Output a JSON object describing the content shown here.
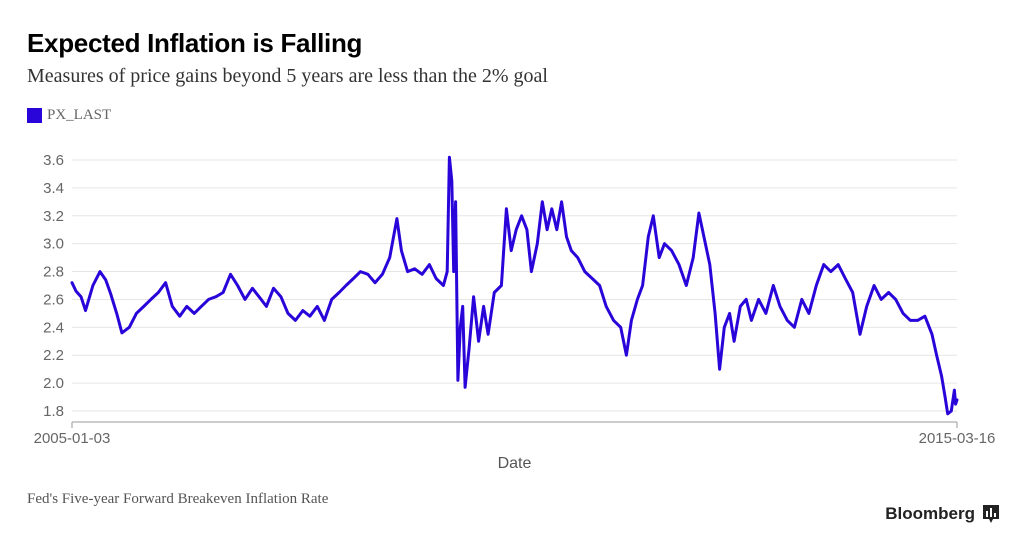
{
  "title": "Expected Inflation is Falling",
  "subtitle": "Measures of price gains beyond 5 years are less than the 2% goal",
  "legend": {
    "label": "PX_LAST",
    "color": "#2a05d9"
  },
  "source": "Fed's Five-year Forward Breakeven Inflation Rate",
  "brand": {
    "name": "Bloomberg",
    "logo_icon": "bloomberg-terminal-icon"
  },
  "chart_data": {
    "type": "line",
    "xlabel": "Date",
    "ylabel": "",
    "x_tick_labels": [
      "2005-01-03",
      "2015-03-16"
    ],
    "x_range": [
      "2005-01-03",
      "2015-03-16"
    ],
    "ylim": [
      1.75,
      3.65
    ],
    "y_ticks": [
      1.8,
      2.0,
      2.2,
      2.4,
      2.6,
      2.8,
      3.0,
      3.2,
      3.4,
      3.6
    ],
    "y_tick_labels": [
      "1.8",
      "2.0",
      "2.2",
      "2.4",
      "2.6",
      "2.8",
      "3.0",
      "3.2",
      "3.4",
      "3.6"
    ],
    "grid": "horizontal",
    "legend_position": "top-left",
    "series": [
      {
        "name": "PX_LAST",
        "color": "#2a05d9",
        "points": [
          [
            "2005-01-03",
            2.72
          ],
          [
            "2005-01-20",
            2.66
          ],
          [
            "2005-02-10",
            2.62
          ],
          [
            "2005-03-01",
            2.52
          ],
          [
            "2005-04-01",
            2.7
          ],
          [
            "2005-05-01",
            2.8
          ],
          [
            "2005-05-25",
            2.74
          ],
          [
            "2005-06-15",
            2.64
          ],
          [
            "2005-07-10",
            2.5
          ],
          [
            "2005-08-01",
            2.36
          ],
          [
            "2005-09-01",
            2.4
          ],
          [
            "2005-10-01",
            2.5
          ],
          [
            "2005-11-01",
            2.55
          ],
          [
            "2005-12-01",
            2.6
          ],
          [
            "2006-01-01",
            2.65
          ],
          [
            "2006-02-01",
            2.72
          ],
          [
            "2006-03-01",
            2.55
          ],
          [
            "2006-04-01",
            2.48
          ],
          [
            "2006-05-01",
            2.55
          ],
          [
            "2006-06-01",
            2.5
          ],
          [
            "2006-07-01",
            2.55
          ],
          [
            "2006-08-01",
            2.6
          ],
          [
            "2006-09-01",
            2.62
          ],
          [
            "2006-10-01",
            2.65
          ],
          [
            "2006-11-01",
            2.78
          ],
          [
            "2006-12-01",
            2.7
          ],
          [
            "2007-01-01",
            2.6
          ],
          [
            "2007-02-01",
            2.68
          ],
          [
            "2007-03-01",
            2.62
          ],
          [
            "2007-04-01",
            2.55
          ],
          [
            "2007-05-01",
            2.68
          ],
          [
            "2007-06-01",
            2.62
          ],
          [
            "2007-07-01",
            2.5
          ],
          [
            "2007-08-01",
            2.45
          ],
          [
            "2007-09-01",
            2.52
          ],
          [
            "2007-10-01",
            2.48
          ],
          [
            "2007-11-01",
            2.55
          ],
          [
            "2007-12-01",
            2.45
          ],
          [
            "2008-01-01",
            2.6
          ],
          [
            "2008-02-01",
            2.65
          ],
          [
            "2008-03-01",
            2.7
          ],
          [
            "2008-04-01",
            2.75
          ],
          [
            "2008-05-01",
            2.8
          ],
          [
            "2008-06-01",
            2.78
          ],
          [
            "2008-07-01",
            2.72
          ],
          [
            "2008-08-01",
            2.78
          ],
          [
            "2008-09-01",
            2.9
          ],
          [
            "2008-10-01",
            3.18
          ],
          [
            "2008-10-20",
            2.95
          ],
          [
            "2008-11-15",
            2.8
          ],
          [
            "2008-12-15",
            2.82
          ],
          [
            "2009-01-15",
            2.78
          ],
          [
            "2009-02-15",
            2.85
          ],
          [
            "2009-03-15",
            2.75
          ],
          [
            "2009-04-15",
            2.7
          ],
          [
            "2009-05-01",
            2.8
          ],
          [
            "2009-05-10",
            3.62
          ],
          [
            "2009-05-20",
            3.45
          ],
          [
            "2009-05-28",
            2.8
          ],
          [
            "2009-06-05",
            3.3
          ],
          [
            "2009-06-15",
            2.02
          ],
          [
            "2009-06-25",
            2.4
          ],
          [
            "2009-07-05",
            2.55
          ],
          [
            "2009-07-15",
            1.97
          ],
          [
            "2009-08-01",
            2.25
          ],
          [
            "2009-08-20",
            2.62
          ],
          [
            "2009-09-10",
            2.3
          ],
          [
            "2009-10-01",
            2.55
          ],
          [
            "2009-10-20",
            2.35
          ],
          [
            "2009-11-15",
            2.65
          ],
          [
            "2009-12-15",
            2.7
          ],
          [
            "2010-01-05",
            3.25
          ],
          [
            "2010-01-25",
            2.95
          ],
          [
            "2010-02-15",
            3.1
          ],
          [
            "2010-03-10",
            3.2
          ],
          [
            "2010-04-01",
            3.1
          ],
          [
            "2010-04-20",
            2.8
          ],
          [
            "2010-05-15",
            3.0
          ],
          [
            "2010-06-05",
            3.3
          ],
          [
            "2010-06-25",
            3.1
          ],
          [
            "2010-07-15",
            3.25
          ],
          [
            "2010-08-05",
            3.1
          ],
          [
            "2010-08-25",
            3.3
          ],
          [
            "2010-09-15",
            3.05
          ],
          [
            "2010-10-05",
            2.95
          ],
          [
            "2010-11-01",
            2.9
          ],
          [
            "2010-12-01",
            2.8
          ],
          [
            "2011-01-01",
            2.75
          ],
          [
            "2011-02-01",
            2.7
          ],
          [
            "2011-03-01",
            2.55
          ],
          [
            "2011-04-01",
            2.45
          ],
          [
            "2011-05-01",
            2.4
          ],
          [
            "2011-05-25",
            2.2
          ],
          [
            "2011-06-15",
            2.45
          ],
          [
            "2011-07-10",
            2.6
          ],
          [
            "2011-08-01",
            2.7
          ],
          [
            "2011-08-25",
            3.05
          ],
          [
            "2011-09-15",
            3.2
          ],
          [
            "2011-10-10",
            2.9
          ],
          [
            "2011-11-01",
            3.0
          ],
          [
            "2011-12-01",
            2.95
          ],
          [
            "2012-01-01",
            2.85
          ],
          [
            "2012-02-01",
            2.7
          ],
          [
            "2012-03-01",
            2.9
          ],
          [
            "2012-03-25",
            3.22
          ],
          [
            "2012-04-15",
            3.05
          ],
          [
            "2012-05-10",
            2.85
          ],
          [
            "2012-06-01",
            2.5
          ],
          [
            "2012-06-20",
            2.1
          ],
          [
            "2012-07-10",
            2.4
          ],
          [
            "2012-08-01",
            2.5
          ],
          [
            "2012-08-20",
            2.3
          ],
          [
            "2012-09-15",
            2.55
          ],
          [
            "2012-10-10",
            2.6
          ],
          [
            "2012-11-01",
            2.45
          ],
          [
            "2012-12-01",
            2.6
          ],
          [
            "2013-01-01",
            2.5
          ],
          [
            "2013-02-01",
            2.7
          ],
          [
            "2013-03-01",
            2.55
          ],
          [
            "2013-04-01",
            2.45
          ],
          [
            "2013-05-01",
            2.4
          ],
          [
            "2013-06-01",
            2.6
          ],
          [
            "2013-07-01",
            2.5
          ],
          [
            "2013-08-01",
            2.7
          ],
          [
            "2013-09-01",
            2.85
          ],
          [
            "2013-10-01",
            2.8
          ],
          [
            "2013-11-01",
            2.85
          ],
          [
            "2013-12-01",
            2.75
          ],
          [
            "2014-01-01",
            2.65
          ],
          [
            "2014-02-01",
            2.35
          ],
          [
            "2014-03-01",
            2.55
          ],
          [
            "2014-04-01",
            2.7
          ],
          [
            "2014-05-01",
            2.6
          ],
          [
            "2014-06-01",
            2.65
          ],
          [
            "2014-07-01",
            2.6
          ],
          [
            "2014-08-01",
            2.5
          ],
          [
            "2014-09-01",
            2.45
          ],
          [
            "2014-10-01",
            2.45
          ],
          [
            "2014-11-01",
            2.48
          ],
          [
            "2014-12-01",
            2.35
          ],
          [
            "2014-12-20",
            2.2
          ],
          [
            "2015-01-10",
            2.05
          ],
          [
            "2015-01-25",
            1.9
          ],
          [
            "2015-02-05",
            1.78
          ],
          [
            "2015-02-20",
            1.8
          ],
          [
            "2015-03-05",
            1.95
          ],
          [
            "2015-03-10",
            1.85
          ],
          [
            "2015-03-16",
            1.88
          ]
        ]
      }
    ]
  }
}
